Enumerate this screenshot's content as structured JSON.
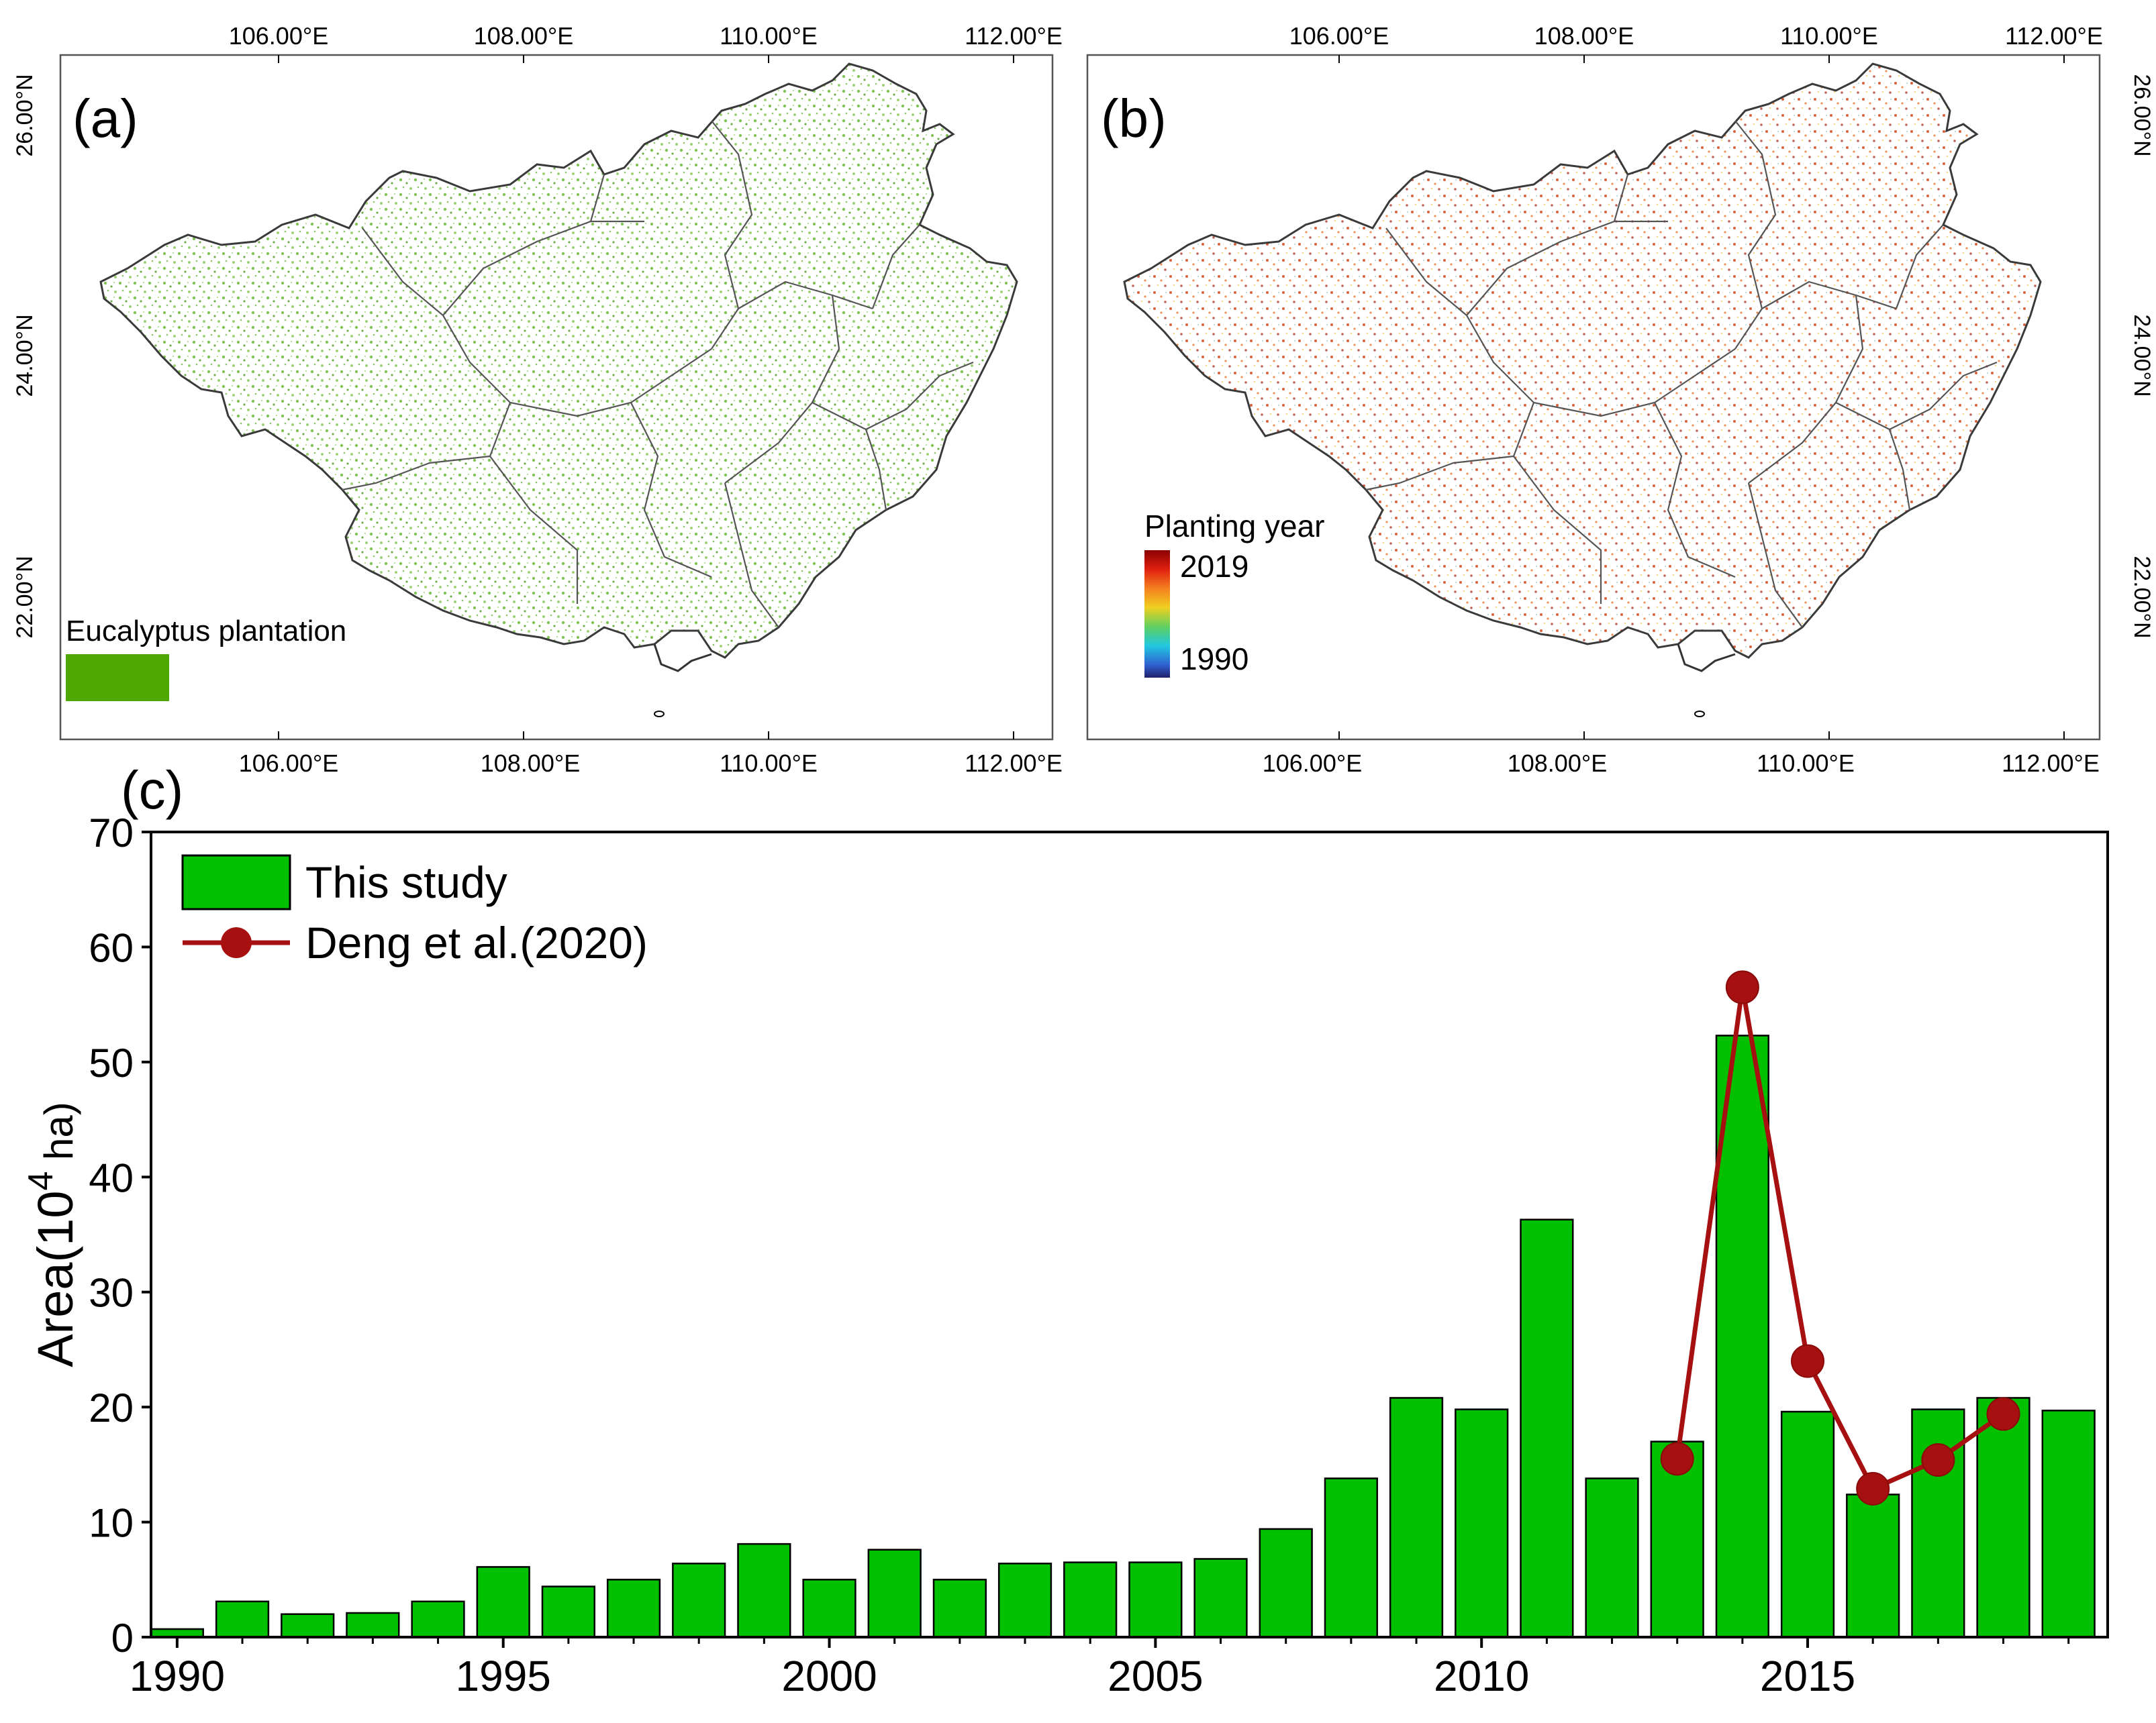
{
  "map_a": {
    "label": "(a)",
    "legend_label": "Eucalyptus plantation",
    "legend_color": "#4fa800",
    "top_ticks": [
      "106.00°E",
      "108.00°E",
      "110.00°E",
      "112.00°E"
    ],
    "bottom_ticks": [
      "106.00°E",
      "108.00°E",
      "110.00°E",
      "112.00°E"
    ],
    "left_ticks": [
      "26.00°N",
      "24.00°N",
      "22.00°N"
    ]
  },
  "map_b": {
    "label": "(b)",
    "legend_title": "Planting year",
    "legend_max": "2019",
    "legend_min": "1990",
    "top_ticks": [
      "106.00°E",
      "108.00°E",
      "110.00°E",
      "112.00°E"
    ],
    "bottom_ticks": [
      "106.00°E",
      "108.00°E",
      "110.00°E",
      "112.00°E"
    ],
    "right_ticks": [
      "26.00°N",
      "24.00°N",
      "22.00°N"
    ]
  },
  "colors": {
    "bar_fill": "#00c000",
    "line_color": "#a61010",
    "map_green": "#5aa829",
    "border": "#333333"
  },
  "chart_data": {
    "panel_label": "(c)",
    "type": "bar",
    "title": "",
    "xlabel": "",
    "ylabel": "Area(10",
    "ylabel_sup": "4",
    "ylabel_tail": " ha)",
    "ylim": [
      0,
      70
    ],
    "yticks": [
      0,
      10,
      20,
      30,
      40,
      50,
      60,
      70
    ],
    "xticks": [
      1990,
      1995,
      2000,
      2005,
      2010,
      2015
    ],
    "legend_position": "top-left",
    "series": [
      {
        "name": "This study",
        "type": "bar",
        "x": [
          1990,
          1991,
          1992,
          1993,
          1994,
          1995,
          1996,
          1997,
          1998,
          1999,
          2000,
          2001,
          2002,
          2003,
          2004,
          2005,
          2006,
          2007,
          2008,
          2009,
          2010,
          2011,
          2012,
          2013,
          2014,
          2015,
          2016,
          2017,
          2018,
          2019
        ],
        "values": [
          0.7,
          3.1,
          2.0,
          2.1,
          3.1,
          6.1,
          4.4,
          5.0,
          6.4,
          8.1,
          5.0,
          7.6,
          5.0,
          6.4,
          6.5,
          6.5,
          6.8,
          9.4,
          13.8,
          20.8,
          19.8,
          36.3,
          13.8,
          17.0,
          52.3,
          19.6,
          12.4,
          19.8,
          20.8,
          19.7
        ]
      },
      {
        "name": "Deng et al.(2020)",
        "type": "line",
        "x": [
          2013,
          2014,
          2015,
          2016,
          2017,
          2018
        ],
        "values": [
          15.5,
          56.5,
          24.0,
          12.9,
          15.4,
          19.4
        ]
      }
    ]
  }
}
